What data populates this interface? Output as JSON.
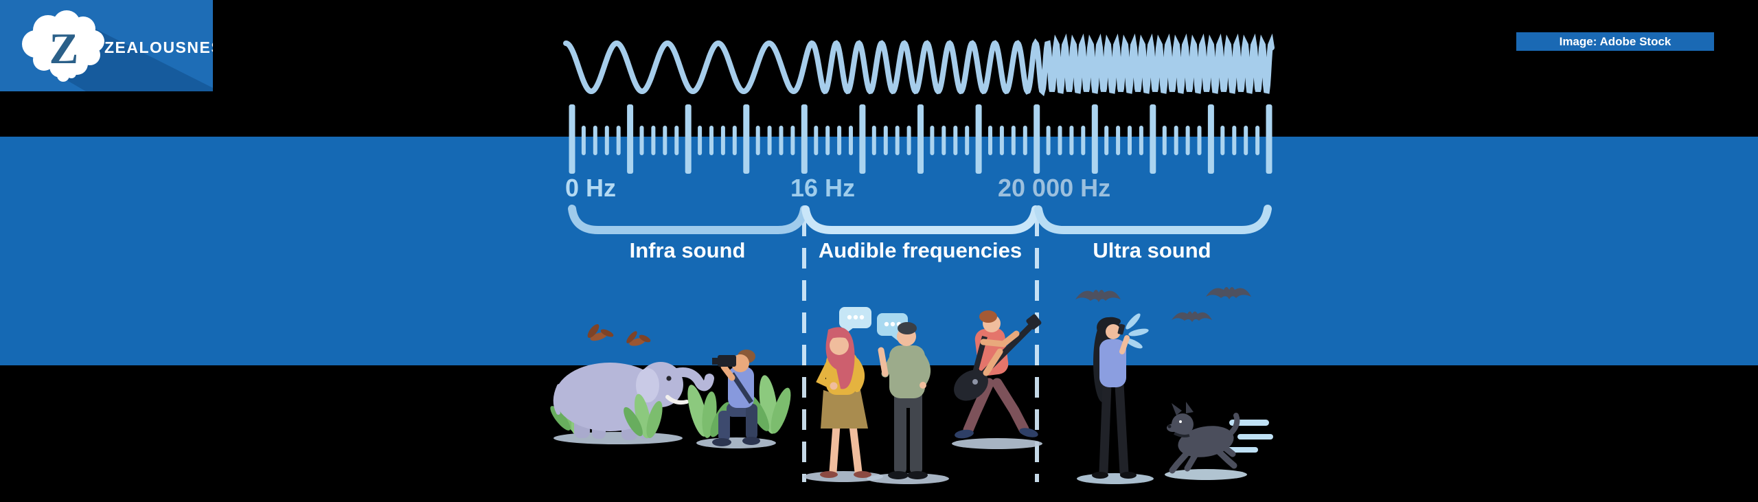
{
  "brand": {
    "logo_letter": "Z",
    "name": "ZEALOUSNESS",
    "logo_icon": "brain-logo-icon"
  },
  "credit": {
    "label": "Image: Adobe Stock"
  },
  "diagram": {
    "markers": [
      {
        "label": "0 Hz"
      },
      {
        "label": "16 Hz"
      },
      {
        "label": "20 000 Hz"
      }
    ],
    "sections": [
      {
        "label": "Infra sound"
      },
      {
        "label": "Audible frequencies"
      },
      {
        "label": "Ultra sound"
      }
    ],
    "scene_icons": {
      "infra_sound": [
        "birds-icon",
        "elephant-icon",
        "grass-icon",
        "photographer-icon"
      ],
      "audible_frequencies": [
        "speech-bubbles-icon",
        "talking-woman-icon",
        "talking-man-icon",
        "guitarist-icon"
      ],
      "ultra_sound": [
        "bats-icon",
        "phone-woman-icon",
        "shout-icon",
        "running-dog-icon"
      ]
    }
  },
  "colors": {
    "background": "#000000",
    "band_blue": "#1569b4",
    "logo_blue": "#1e6db6",
    "badge_blue": "#1a69b4",
    "tick_blue": "#abd4f0",
    "wave_blue": "#a6cdeb",
    "bracket_blue_infra": "#9fcbec",
    "bracket_blue_audible": "#c9e6f9",
    "bracket_blue_ultra": "#b7dcf4",
    "section_label_white": "#ffffff"
  }
}
